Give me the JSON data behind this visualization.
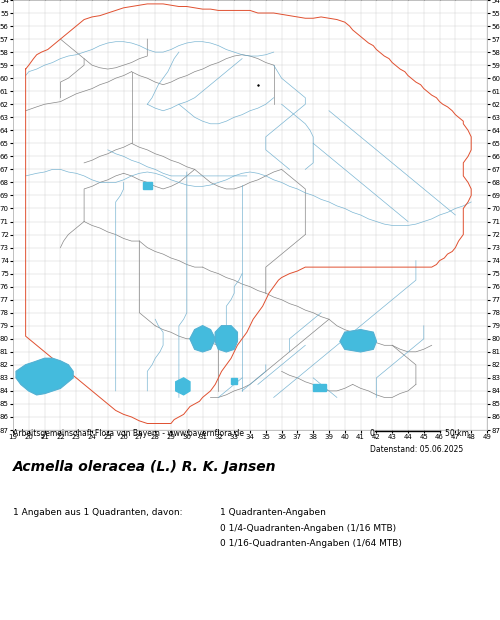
{
  "title": "Acmella oleracea (L.) R. K. Jansen",
  "subtitle": "Arbeitsgemeinschaft Flora von Bayern - www.bayernflora.de",
  "date_label": "Datenstand: 05.06.2025",
  "stats_line1": "1 Angaben aus 1 Quadranten, davon:",
  "stats_right1": "1 Quadranten-Angaben",
  "stats_right2": "0 1/4-Quadranten-Angaben (1/16 MTB)",
  "stats_right3": "0 1/16-Quadranten-Angaben (1/64 MTB)",
  "x_ticks": [
    19,
    20,
    21,
    22,
    23,
    24,
    25,
    26,
    27,
    28,
    29,
    30,
    31,
    32,
    33,
    34,
    35,
    36,
    37,
    38,
    39,
    40,
    41,
    42,
    43,
    44,
    45,
    46,
    47,
    48,
    49
  ],
  "y_ticks": [
    54,
    55,
    56,
    57,
    58,
    59,
    60,
    61,
    62,
    63,
    64,
    65,
    66,
    67,
    68,
    69,
    70,
    71,
    72,
    73,
    74,
    75,
    76,
    77,
    78,
    79,
    80,
    81,
    82,
    83,
    84,
    85,
    86,
    87
  ],
  "x_min": 19,
  "x_max": 49,
  "y_min": 54,
  "y_max": 87,
  "grid_color": "#cccccc",
  "bg_color": "#ffffff",
  "border_color_outer": "#e05030",
  "border_color_inner": "#888888",
  "river_color": "#66aacc",
  "lake_color": "#44bbdd",
  "fig_width": 5.0,
  "fig_height": 6.2,
  "dpi": 100
}
